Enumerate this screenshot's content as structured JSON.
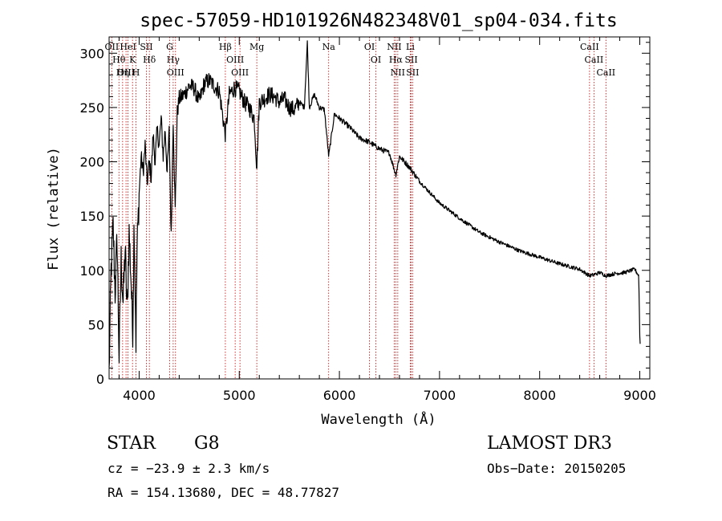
{
  "chart_data": {
    "type": "line",
    "title": "spec-57059-HD101926N482348V01_sp04-034.fits",
    "xlabel": "Wavelength (Å)",
    "ylabel": "Flux (relative)",
    "xlim": [
      3700,
      9100
    ],
    "ylim": [
      0,
      315
    ],
    "xticks": [
      4000,
      5000,
      6000,
      7000,
      8000,
      9000
    ],
    "yticks": [
      0,
      50,
      100,
      150,
      200,
      250,
      300
    ],
    "series": [
      {
        "name": "flux",
        "x": [
          3700,
          3720,
          3740,
          3760,
          3780,
          3800,
          3820,
          3840,
          3860,
          3880,
          3900,
          3920,
          3935,
          3950,
          3968,
          3980,
          4000,
          4020,
          4040,
          4060,
          4080,
          4101,
          4120,
          4140,
          4160,
          4180,
          4200,
          4220,
          4240,
          4260,
          4280,
          4300,
          4320,
          4340,
          4360,
          4380,
          4400,
          4450,
          4500,
          4550,
          4600,
          4650,
          4700,
          4750,
          4800,
          4861,
          4900,
          4950,
          5000,
          5050,
          5100,
          5150,
          5175,
          5200,
          5250,
          5300,
          5350,
          5400,
          5450,
          5500,
          5550,
          5600,
          5650,
          5680,
          5700,
          5750,
          5800,
          5850,
          5893,
          5950,
          6000,
          6100,
          6200,
          6300,
          6400,
          6500,
          6563,
          6600,
          6700,
          6800,
          6900,
          7000,
          7200,
          7400,
          7600,
          7800,
          8000,
          8200,
          8400,
          8498,
          8542,
          8600,
          8662,
          8750,
          8850,
          8950,
          8990,
          9000,
          9005
        ],
        "values": [
          5,
          100,
          140,
          80,
          130,
          20,
          110,
          70,
          120,
          60,
          135,
          90,
          40,
          150,
          35,
          120,
          170,
          205,
          190,
          215,
          180,
          200,
          185,
          225,
          200,
          230,
          215,
          240,
          205,
          230,
          190,
          228,
          130,
          240,
          155,
          245,
          258,
          262,
          270,
          268,
          255,
          272,
          275,
          270,
          265,
          225,
          262,
          268,
          265,
          255,
          250,
          240,
          195,
          255,
          258,
          262,
          260,
          255,
          258,
          250,
          248,
          255,
          250,
          310,
          250,
          262,
          250,
          248,
          205,
          244,
          240,
          232,
          222,
          218,
          212,
          208,
          188,
          205,
          195,
          182,
          172,
          162,
          148,
          135,
          126,
          118,
          112,
          106,
          101,
          95,
          96,
          98,
          95,
          97,
          98,
          101,
          95,
          40,
          30
        ]
      }
    ],
    "spectral_lines": [
      {
        "label": "Hθ",
        "wl": 3798
      },
      {
        "label": "OII",
        "wl": 3727
      },
      {
        "label": "OIII",
        "wl": 3869
      },
      {
        "label": "Hη",
        "wl": 3835
      },
      {
        "label": "K",
        "wl": 3934
      },
      {
        "label": "HeI",
        "wl": 3889
      },
      {
        "label": "H",
        "wl": 3969
      },
      {
        "label": "Hδ",
        "wl": 4102
      },
      {
        "label": "SII",
        "wl": 4072
      },
      {
        "label": "OIII",
        "wl": 4363
      },
      {
        "label": "Hγ",
        "wl": 4340
      },
      {
        "label": "G",
        "wl": 4305
      },
      {
        "label": "Hβ",
        "wl": 4861
      },
      {
        "label": "OIII",
        "wl": 5007
      },
      {
        "label": "OIII",
        "wl": 4959
      },
      {
        "label": "Mg",
        "wl": 5175
      },
      {
        "label": "Na",
        "wl": 5893
      },
      {
        "label": "OI",
        "wl": 6300
      },
      {
        "label": "OI",
        "wl": 6364
      },
      {
        "label": "Hα",
        "wl": 6563
      },
      {
        "label": "NII",
        "wl": 6583
      },
      {
        "label": "NII",
        "wl": 6548
      },
      {
        "label": "SII",
        "wl": 6717
      },
      {
        "label": "Li",
        "wl": 6708
      },
      {
        "label": "SII",
        "wl": 6731
      },
      {
        "label": "CaII",
        "wl": 8542
      },
      {
        "label": "CaII",
        "wl": 8498
      },
      {
        "label": "CaII",
        "wl": 8662
      }
    ]
  },
  "info": {
    "object_class": "STAR",
    "subclass": "G8",
    "survey": "LAMOST DR3",
    "cz": "cz = −23.9 ± 2.3 km/s",
    "obs_date": "Obs−Date: 20150205",
    "radec": "RA = 154.13680, DEC =  48.77827"
  },
  "colors": {
    "line_marker": "#cc0000",
    "spectrum": "#000000",
    "axes": "#000000",
    "background": "#ffffff"
  }
}
